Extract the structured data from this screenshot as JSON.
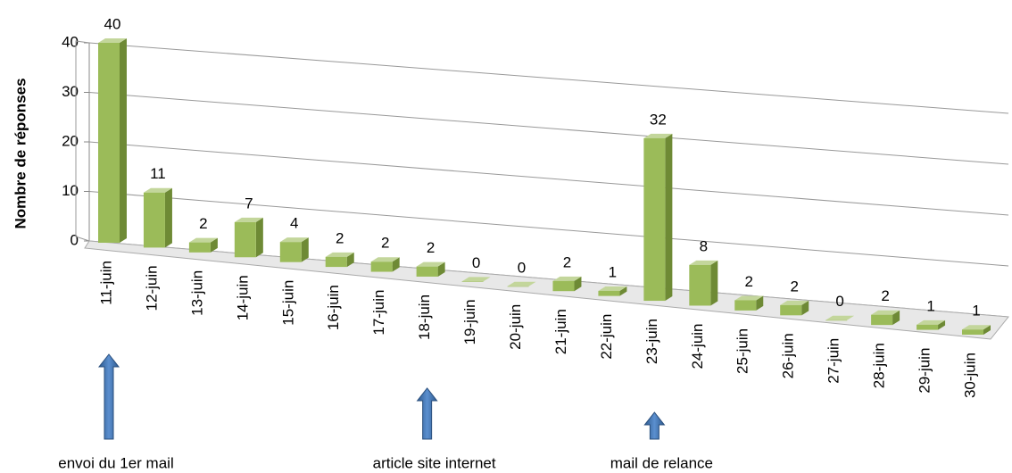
{
  "chart_data": {
    "type": "bar",
    "y_axis_label": "Nombre de réponses",
    "categories": [
      "11-juin",
      "12-juin",
      "13-juin",
      "14-juin",
      "15-juin",
      "16-juin",
      "17-juin",
      "18-juin",
      "19-juin",
      "20-juin",
      "21-juin",
      "22-juin",
      "23-juin",
      "24-juin",
      "25-juin",
      "26-juin",
      "27-juin",
      "28-juin",
      "29-juin",
      "30-juin"
    ],
    "values": [
      40,
      11,
      2,
      7,
      4,
      2,
      2,
      2,
      0,
      0,
      2,
      1,
      32,
      8,
      2,
      2,
      0,
      2,
      1,
      1
    ],
    "color": "#9bbb59",
    "ylim": [
      0,
      40
    ],
    "yticks": [
      0,
      10,
      20,
      30,
      40
    ],
    "grid": true,
    "annotations": [
      {
        "text": "envoi du 1er mail",
        "category": "11-juin"
      },
      {
        "text": "article site internet",
        "category": "18-juin"
      },
      {
        "text": "mail de relance",
        "category": "23-juin"
      }
    ]
  }
}
